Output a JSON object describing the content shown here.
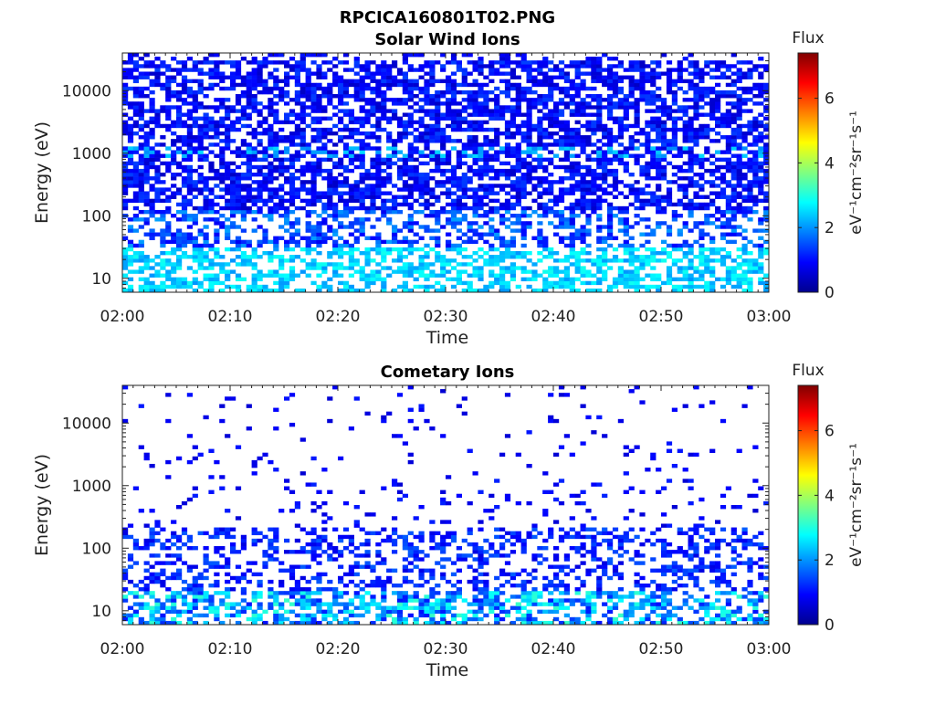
{
  "figure": {
    "title": "RPCICA160801T02.PNG"
  },
  "colormap": "jet",
  "chart_data": [
    {
      "type": "heatmap",
      "title": "Solar Wind Ions",
      "xlabel": "Time",
      "ylabel": "Energy (eV)",
      "xlim": [
        "02:00",
        "03:00"
      ],
      "ylim": [
        6,
        40000
      ],
      "yscale": "log",
      "xticks": [
        "02:00",
        "02:10",
        "02:20",
        "02:30",
        "02:40",
        "02:50",
        "03:00"
      ],
      "yticks": [
        "10",
        "100",
        "1000",
        "10000"
      ],
      "colorbar": {
        "label": "Flux",
        "unit": "eV⁻¹cm⁻²sr⁻¹s⁻¹",
        "min": 0,
        "max": 7.4,
        "ticks": [
          "0",
          "2",
          "4",
          "6"
        ]
      },
      "note": "dense mostly-blue flux (~0.5–1.5) across 30–30000 eV, cyan patches (~2–2.8) below 30 eV and along a band near 1000 eV"
    },
    {
      "type": "heatmap",
      "title": "Cometary Ions",
      "xlabel": "Time",
      "ylabel": "Energy (eV)",
      "xlim": [
        "02:00",
        "03:00"
      ],
      "ylim": [
        6,
        40000
      ],
      "yscale": "log",
      "xticks": [
        "02:00",
        "02:10",
        "02:20",
        "02:30",
        "02:40",
        "02:50",
        "03:00"
      ],
      "yticks": [
        "10",
        "100",
        "1000",
        "10000"
      ],
      "colorbar": {
        "label": "Flux",
        "unit": "eV⁻¹cm⁻²sr⁻¹s⁻¹",
        "min": 0,
        "max": 7.4,
        "ticks": [
          "0",
          "2",
          "4",
          "6"
        ]
      },
      "note": "sparse blue flux above 200 eV, denser blue 30–200 eV, cyan/green (~2–3.2) blocks below 20 eV"
    }
  ]
}
